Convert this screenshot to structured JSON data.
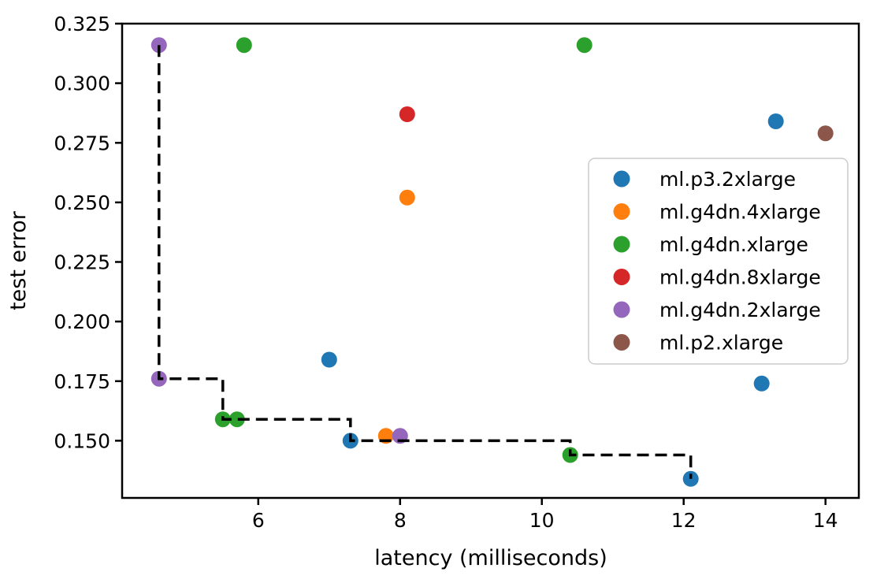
{
  "figure": {
    "background": "#ffffff",
    "plot_border_color": "#000000"
  },
  "chart_data": {
    "type": "scatter",
    "title": "",
    "xlabel": "latency (milliseconds)",
    "ylabel": "test error",
    "xlim": [
      4.08,
      14.47
    ],
    "ylim": [
      0.126,
      0.325
    ],
    "xticks": [
      6,
      8,
      10,
      12,
      14
    ],
    "xtick_labels": [
      "6",
      "8",
      "10",
      "12",
      "14"
    ],
    "yticks": [
      0.15,
      0.175,
      0.2,
      0.225,
      0.25,
      0.275,
      0.3,
      0.325
    ],
    "ytick_labels": [
      "0.150",
      "0.175",
      "0.200",
      "0.225",
      "0.250",
      "0.275",
      "0.300",
      "0.325"
    ],
    "grid": false,
    "marker_radius_px": 10,
    "legend": {
      "position": "center-right-inside",
      "border_color": "#cccccc",
      "background": "#ffffff"
    },
    "series": [
      {
        "name": "ml.p3.2xlarge",
        "color": "#1f77b4",
        "points": [
          [
            7.0,
            0.184
          ],
          [
            7.3,
            0.15
          ],
          [
            12.1,
            0.134
          ],
          [
            13.1,
            0.174
          ],
          [
            13.3,
            0.284
          ]
        ]
      },
      {
        "name": "ml.g4dn.4xlarge",
        "color": "#ff7f0e",
        "points": [
          [
            7.8,
            0.152
          ],
          [
            8.1,
            0.252
          ]
        ]
      },
      {
        "name": "ml.g4dn.xlarge",
        "color": "#2ca02c",
        "points": [
          [
            5.5,
            0.159
          ],
          [
            5.7,
            0.159
          ],
          [
            5.8,
            0.316
          ],
          [
            10.4,
            0.144
          ],
          [
            10.6,
            0.316
          ]
        ]
      },
      {
        "name": "ml.g4dn.8xlarge",
        "color": "#d62728",
        "points": [
          [
            8.1,
            0.287
          ]
        ]
      },
      {
        "name": "ml.g4dn.2xlarge",
        "color": "#9467bd",
        "points": [
          [
            4.6,
            0.316
          ],
          [
            4.6,
            0.176
          ],
          [
            8.0,
            0.152
          ]
        ]
      },
      {
        "name": "ml.p2.xlarge",
        "color": "#8c564b",
        "points": [
          [
            14.0,
            0.279
          ]
        ]
      }
    ],
    "pareto_frontier": {
      "style": "dashed",
      "color": "#000000",
      "points": [
        [
          4.6,
          0.316
        ],
        [
          4.6,
          0.176
        ],
        [
          5.5,
          0.176
        ],
        [
          5.5,
          0.159
        ],
        [
          7.3,
          0.159
        ],
        [
          7.3,
          0.15
        ],
        [
          10.4,
          0.15
        ],
        [
          10.4,
          0.144
        ],
        [
          12.1,
          0.144
        ],
        [
          12.1,
          0.134
        ]
      ]
    }
  }
}
